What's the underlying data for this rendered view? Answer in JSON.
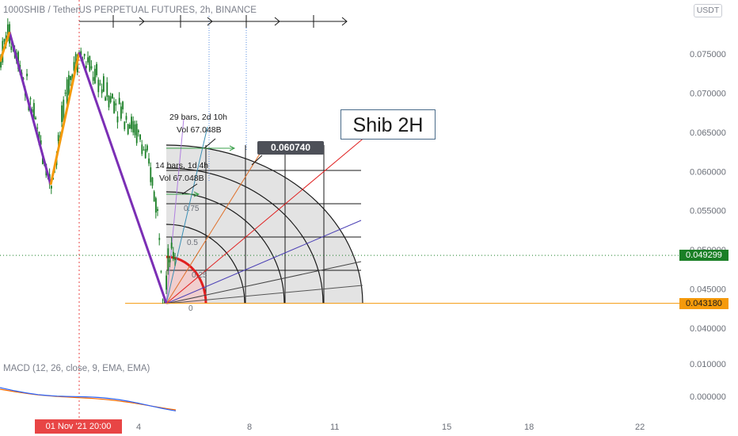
{
  "header": {
    "symbol_title": "1000SHIB / TetherUS PERPETUAL FUTURES, 2h, BINANCE",
    "currency_badge": "USDT"
  },
  "annotation_label": "Shib 2H",
  "macd_title": "MACD (12, 26, close, 9, EMA, EMA)",
  "price_tags": {
    "last_price": "0.049299",
    "level_price": "0.043180",
    "tooltip_price": "0.060740"
  },
  "date_marker": "01 Nov '21   20:00",
  "measure_labels": {
    "range_long_bars": "29 bars, 2d 10h",
    "range_long_vol": "Vol 67.048B",
    "range_short_bars": "14 bars, 1d 4h",
    "range_short_vol": "Vol 67.048B"
  },
  "fib_labels": [
    "0",
    "0.25",
    "0.5",
    "0.75"
  ],
  "colors": {
    "candle": "#1a7f26",
    "swing_down": "#7b2fb5",
    "swing_up": "#f59a0b",
    "macd_line": "#2962ff",
    "signal_line": "#ff6d00",
    "fan_fill": "#d8d8d8",
    "inner_arc": "#e02020",
    "level_line": "#f59a0b",
    "vertical_marker": "#e84545"
  },
  "chart_data": {
    "type": "candlestick",
    "price_axis": {
      "ticks": [
        "0.075000",
        "0.070000",
        "0.065000",
        "0.060000",
        "0.055000",
        "0.050000",
        "0.045000",
        "0.040000"
      ],
      "range": [
        0.037,
        0.081
      ]
    },
    "macd_axis": {
      "ticks": [
        "0.010000",
        "0.000000"
      ]
    },
    "time_axis": {
      "ticks": [
        "4",
        "8",
        "11",
        "15",
        "18",
        "22"
      ]
    },
    "horizontal_levels": [
      0.049299,
      0.04318
    ],
    "swing_points": [
      {
        "label": "high",
        "price": 0.0778
      },
      {
        "label": "low",
        "price": 0.0583
      },
      {
        "label": "high",
        "price": 0.0752
      },
      {
        "label": "low",
        "price": 0.0432
      }
    ]
  }
}
